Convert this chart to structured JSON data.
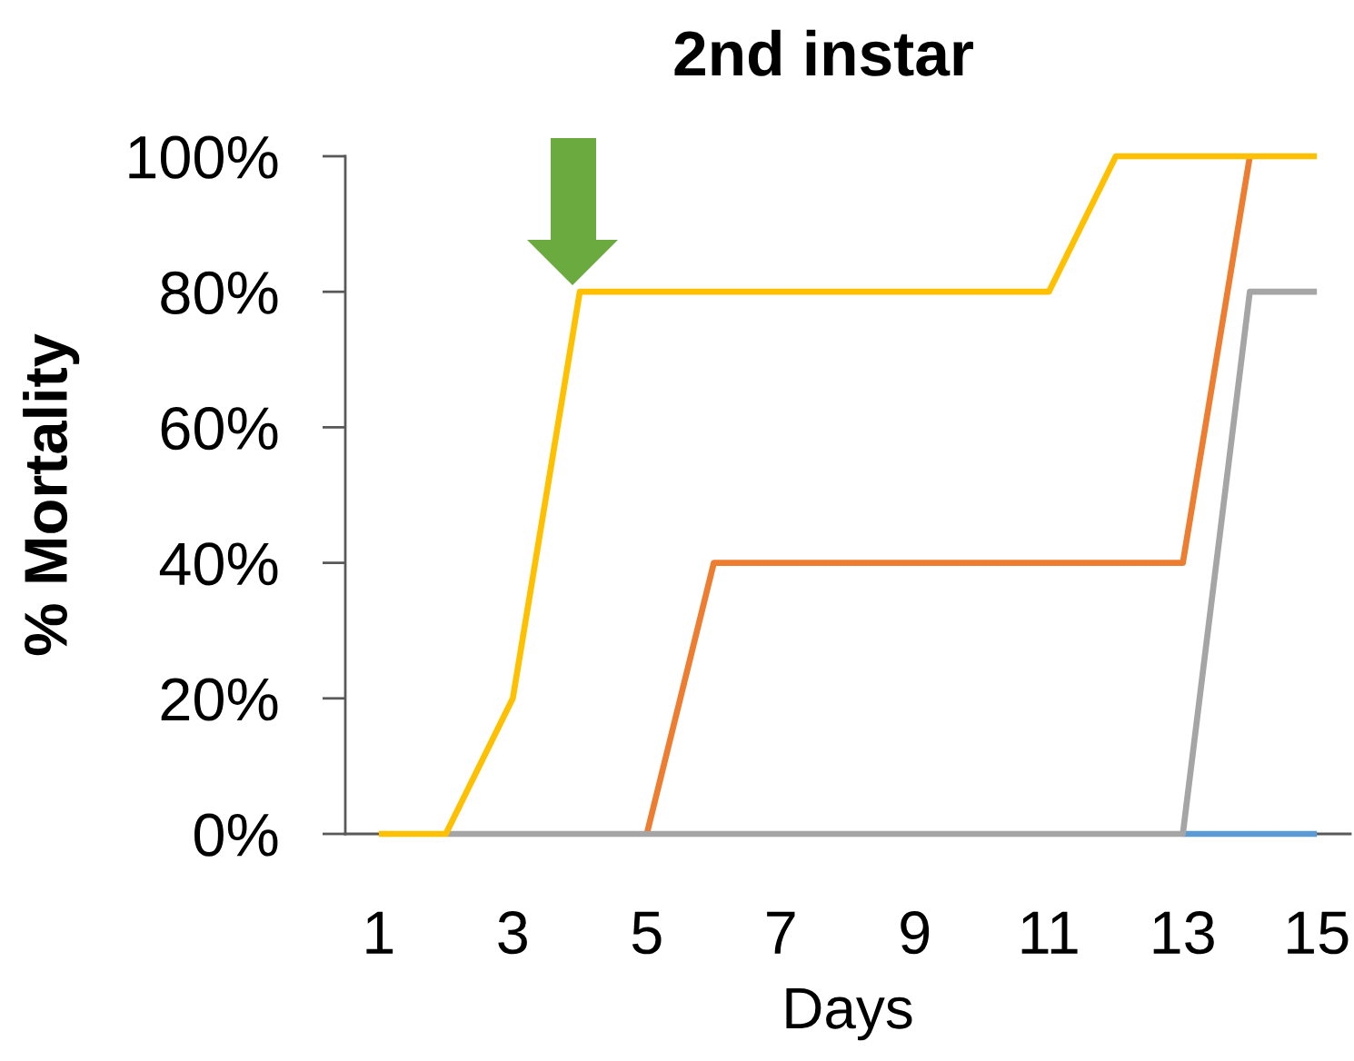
{
  "chart_data": {
    "type": "line",
    "title": "2nd instar",
    "xlabel": "Days",
    "ylabel": "% Mortality",
    "x": [
      1,
      2,
      3,
      4,
      5,
      6,
      7,
      8,
      9,
      10,
      11,
      12,
      13,
      14,
      15
    ],
    "xlim": [
      0.5,
      15.5
    ],
    "xticks": [
      1,
      3,
      5,
      7,
      9,
      11,
      13,
      15
    ],
    "ylim": [
      0,
      100
    ],
    "yticks": [
      {
        "value": 0,
        "label": "0%"
      },
      {
        "value": 20,
        "label": "20%"
      },
      {
        "value": 40,
        "label": "40%"
      },
      {
        "value": 60,
        "label": "60%"
      },
      {
        "value": 80,
        "label": "80%"
      },
      {
        "value": 100,
        "label": "100%"
      }
    ],
    "series": [
      {
        "color": "#5b9bd5",
        "values": [
          null,
          null,
          null,
          null,
          null,
          null,
          null,
          null,
          null,
          null,
          null,
          null,
          0,
          0,
          0
        ]
      },
      {
        "color": "#ed7d31",
        "values": [
          null,
          null,
          null,
          null,
          0,
          40,
          40,
          40,
          40,
          40,
          40,
          40,
          40,
          100,
          null
        ]
      },
      {
        "color": "#a5a5a5",
        "values": [
          null,
          0,
          0,
          0,
          0,
          0,
          0,
          0,
          0,
          0,
          0,
          0,
          0,
          80,
          80
        ]
      },
      {
        "color": "#ffc000",
        "values": [
          0,
          0,
          20,
          80,
          80,
          80,
          80,
          80,
          80,
          80,
          80,
          100,
          100,
          100,
          100
        ]
      }
    ]
  }
}
